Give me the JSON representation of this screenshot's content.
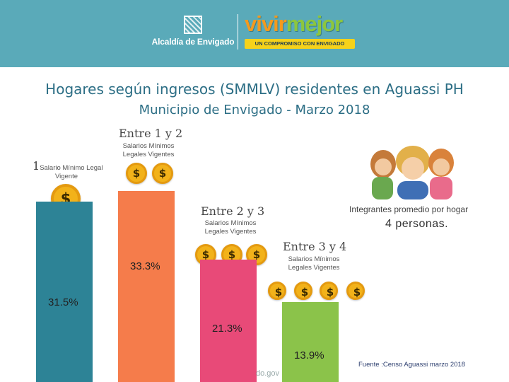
{
  "header": {
    "org_name": "Alcaldía de Envigado",
    "brand_part1": "vivir",
    "brand_part2": "mejor",
    "slogan": "UN COMPROMISO CON ENVIGADO",
    "colors": {
      "band": "#5aaab9",
      "brand_orange": "#f39a1e",
      "brand_green": "#8cc63e",
      "slogan_bg": "#f6d21a"
    }
  },
  "categories_text": [
    {
      "label_num": "1",
      "label_rest": "Salario Mínimo Legal",
      "label_line2": "Vigente",
      "coins": 1
    },
    {
      "label": "Entre 1 y 2",
      "sub_line1": "Salarios Mínimos",
      "sub_line2": "Legales Vigentes",
      "coins": 2
    },
    {
      "label": "Entre 2 y 3",
      "sub_line1": "Salarios Mínimos",
      "sub_line2": "Legales Vigentes",
      "coins": 3
    },
    {
      "label": "Entre 3 y 4",
      "sub_line1": "Salarios Mínimos",
      "sub_line2": "Legales Vigentes",
      "coins": 4
    }
  ],
  "chart_data": {
    "type": "bar",
    "title": "Hogares según ingresos (SMMLV) residentes en Aguassi PH",
    "subtitle": "Municipio de Envigado - Marzo 2018",
    "categories": [
      "1 Salario Mínimo Legal Vigente",
      "Entre 1 y 2",
      "Entre 2 y 3",
      "Entre 3 y 4"
    ],
    "values": [
      31.5,
      33.3,
      21.3,
      13.9
    ],
    "value_labels": [
      "31.5%",
      "33.3%",
      "21.3%",
      "13.9%"
    ],
    "colors": [
      "#2d8396",
      "#f57c4b",
      "#e84a78",
      "#8bc34a"
    ],
    "unit": "%",
    "xlabel": "",
    "ylabel": "",
    "ylim": [
      0,
      40
    ]
  },
  "household_avg": {
    "label": "Integrantes promedio por hogar",
    "value": "4 personas."
  },
  "source": "Fuente :Censo Aguassi marzo 2018",
  "url_fragment": "do.gov"
}
